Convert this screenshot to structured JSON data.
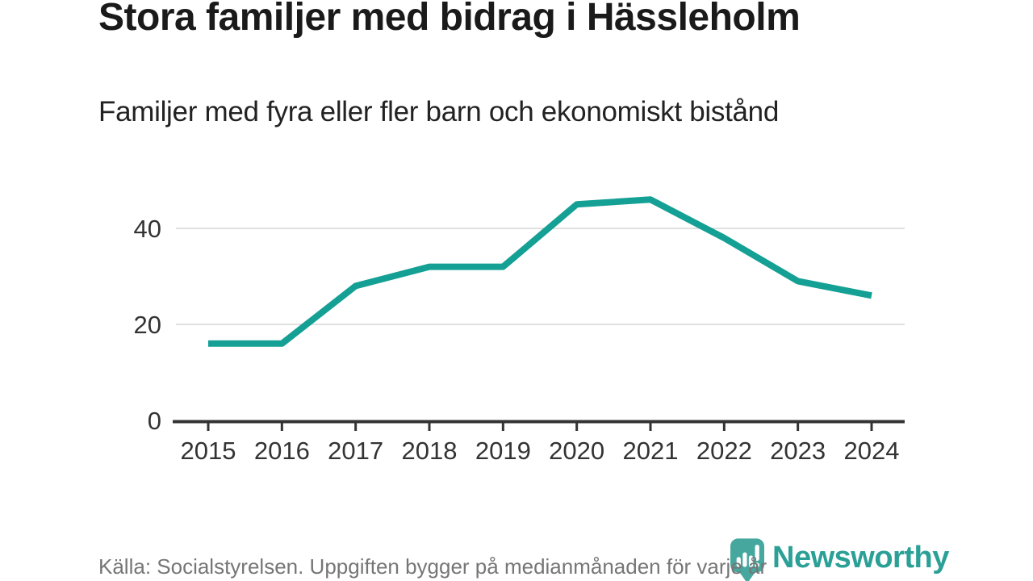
{
  "header": {
    "title": "Stora familjer med bidrag i Hässleholm",
    "subtitle": "Familjer med fyra eller fler barn och ekonomiskt bistånd"
  },
  "footer": {
    "source": "Källa: Socialstyrelsen. Uppgiften bygger på medianmånaden för varje år",
    "brand": "Newsworthy"
  },
  "colors": {
    "line": "#14a094",
    "grid": "#e0e0e0",
    "axis": "#333333",
    "tick_label": "#333333",
    "title": "#1a1a1a",
    "subtitle": "#222222",
    "footer_text": "#767676",
    "brand_text": "#2ba096",
    "brand_icon": "#45a79e"
  },
  "chart_data": {
    "type": "line",
    "title": "Stora familjer med bidrag i Hässleholm",
    "subtitle": "Familjer med fyra eller fler barn och ekonomiskt bistånd",
    "categories": [
      "2015",
      "2016",
      "2017",
      "2018",
      "2019",
      "2020",
      "2021",
      "2022",
      "2023",
      "2024"
    ],
    "series": [
      {
        "name": "Familjer med fyra eller fler barn och ekonomiskt bistånd",
        "values": [
          16,
          16,
          28,
          32,
          32,
          45,
          46,
          38,
          29,
          26
        ]
      }
    ],
    "xlabel": "",
    "ylabel": "",
    "yticks": [
      0,
      20,
      40
    ],
    "ylim": [
      0,
      50
    ],
    "grid": "horizontal-only",
    "legend": "none",
    "line_color": "#14a094"
  }
}
